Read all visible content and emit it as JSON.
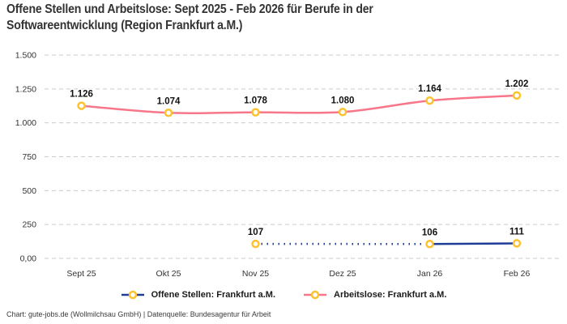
{
  "header": {
    "title": "Offene Stellen und Arbeitslose: Sept 2025 - Feb 2026 für Berufe in der Softwareentwicklung (Region Frankfurt a.M.)"
  },
  "legend": {
    "items": [
      {
        "label": "Offene Stellen: Frankfurt a.M.",
        "color": "#1f3d96"
      },
      {
        "label": "Arbeitslose: Frankfurt a.M.",
        "color": "#f8768a"
      }
    ]
  },
  "footer": {
    "credit": "Chart: gute-jobs.de (Wollmilchsau GmbH) | Datenquelle: Bundesagentur für Arbeit"
  },
  "colors": {
    "marker_ring": "#fcc230",
    "marker_fill": "#ffffff",
    "grid": "#cbcbcb",
    "axis_text": "#333333",
    "value_label": "#111111",
    "title": "#333333"
  },
  "chart_data": {
    "type": "line",
    "title": "Offene Stellen und Arbeitslose: Sept 2025 - Feb 2026 für Berufe in der Softwareentwicklung (Region Frankfurt a.M.)",
    "categories": [
      "Sept 25",
      "Okt 25",
      "Nov 25",
      "Dez 25",
      "Jan 26",
      "Feb 26"
    ],
    "ylim": [
      0,
      1500
    ],
    "y_ticks": [
      {
        "value": 1500,
        "label": "1.500"
      },
      {
        "value": 1250,
        "label": "1.250"
      },
      {
        "value": 1000,
        "label": "1.000"
      },
      {
        "value": 750,
        "label": "750"
      },
      {
        "value": 500,
        "label": "500"
      },
      {
        "value": 250,
        "label": "250"
      },
      {
        "value": 0,
        "label": "0,00"
      }
    ],
    "grid": "horizontal-dashed",
    "legend_position": "bottom",
    "series": [
      {
        "name": "Offene Stellen: Frankfurt a.M.",
        "color": "#1f3d96",
        "values": [
          null,
          null,
          107,
          null,
          106,
          111
        ],
        "value_labels": [
          null,
          null,
          "107",
          null,
          "106",
          "111"
        ],
        "smooth": false,
        "gap_segment_style": "dotted"
      },
      {
        "name": "Arbeitslose: Frankfurt a.M.",
        "color": "#f8768a",
        "values": [
          1126,
          1074,
          1078,
          1080,
          1164,
          1202
        ],
        "value_labels": [
          "1.126",
          "1.074",
          "1.078",
          "1.080",
          "1.164",
          "1.202"
        ],
        "smooth": true,
        "gap_segment_style": "none"
      }
    ]
  }
}
